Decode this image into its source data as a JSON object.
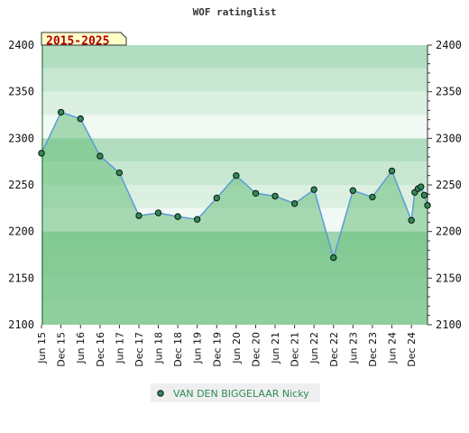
{
  "chart_data": {
    "type": "line",
    "title": "WOF ratinglist",
    "period_label": "2015-2025",
    "ylim": [
      2100,
      2400
    ],
    "y_ticks": [
      2100,
      2150,
      2200,
      2250,
      2300,
      2350,
      2400
    ],
    "x_tick_labels": [
      "Jun 15",
      "Dec 15",
      "Jun 16",
      "Dec 16",
      "Jun 17",
      "Dec 17",
      "Jun 18",
      "Dec 18",
      "Jun 19",
      "Dec 19",
      "Jun 20",
      "Dec 20",
      "Jun 21",
      "Dec 21",
      "Jun 22",
      "Dec 22",
      "Jun 23",
      "Dec 23",
      "Jun 24",
      "Dec 24"
    ],
    "grid": true,
    "legend_position": "bottom-center",
    "colors": {
      "line": "#5b9bd5",
      "fill": "#6abf7b",
      "marker": "#2e8b57",
      "legend_text": "#2e8b57",
      "period_bg": "#ffffc8",
      "period_text": "#b30000"
    },
    "series": [
      {
        "name": "VAN DEN BIGGELAAR Nicky",
        "points": [
          [
            "2015-06-01",
            2284
          ],
          [
            "2015-12-01",
            2328
          ],
          [
            "2016-06-01",
            2321
          ],
          [
            "2016-12-01",
            2281
          ],
          [
            "2017-06-01",
            2263
          ],
          [
            "2017-12-01",
            2217
          ],
          [
            "2018-06-01",
            2220
          ],
          [
            "2018-12-01",
            2216
          ],
          [
            "2019-06-01",
            2213
          ],
          [
            "2019-12-01",
            2236
          ],
          [
            "2020-06-01",
            2260
          ],
          [
            "2020-12-01",
            2241
          ],
          [
            "2021-06-01",
            2238
          ],
          [
            "2021-12-01",
            2230
          ],
          [
            "2022-06-01",
            2245
          ],
          [
            "2022-12-01",
            2172
          ],
          [
            "2023-06-01",
            2244
          ],
          [
            "2023-12-01",
            2237
          ],
          [
            "2024-06-01",
            2265
          ],
          [
            "2024-12-01",
            2212
          ],
          [
            "2025-01-01",
            2242
          ],
          [
            "2025-02-01",
            2246
          ],
          [
            "2025-03-01",
            2248
          ],
          [
            "2025-04-01",
            2239
          ],
          [
            "2025-05-01",
            2228
          ]
        ]
      }
    ]
  }
}
